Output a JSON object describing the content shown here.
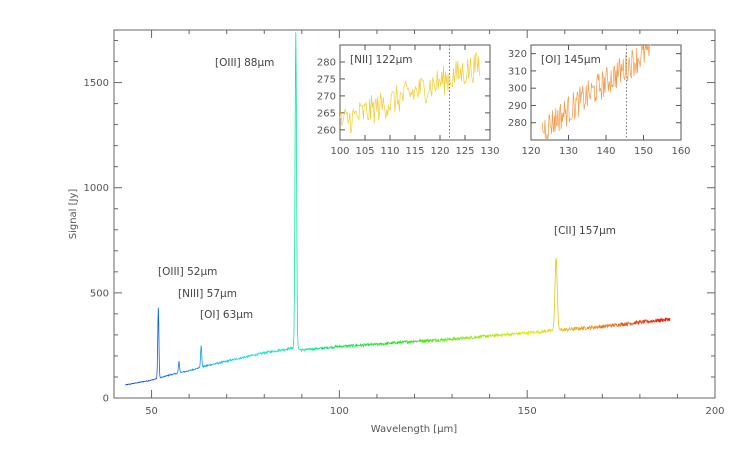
{
  "chart_data": {
    "type": "line",
    "xlabel": "Wavelength [μm]",
    "ylabel": "Signal [Jy]",
    "xlim": [
      40,
      200
    ],
    "ylim": [
      0,
      1750
    ],
    "xticks": [
      {
        "value": 50,
        "label": "50"
      },
      {
        "value": 100,
        "label": "100"
      },
      {
        "value": 150,
        "label": "150"
      },
      {
        "value": 200,
        "label": "200"
      }
    ],
    "yticks": [
      {
        "value": 0,
        "label": "0"
      },
      {
        "value": 500,
        "label": "500"
      },
      {
        "value": 1000,
        "label": "1000"
      },
      {
        "value": 1500,
        "label": "1500"
      }
    ],
    "grid": false,
    "continuum": [
      [
        43,
        62
      ],
      [
        50,
        85
      ],
      [
        52,
        95
      ],
      [
        55,
        110
      ],
      [
        60,
        130
      ],
      [
        65,
        155
      ],
      [
        70,
        175
      ],
      [
        75,
        195
      ],
      [
        80,
        215
      ],
      [
        85,
        230
      ],
      [
        88,
        240
      ],
      [
        90,
        228
      ],
      [
        95,
        236
      ],
      [
        100,
        245
      ],
      [
        110,
        255
      ],
      [
        120,
        270
      ],
      [
        130,
        280
      ],
      [
        140,
        295
      ],
      [
        150,
        310
      ],
      [
        160,
        325
      ],
      [
        170,
        340
      ],
      [
        180,
        360
      ],
      [
        188,
        375
      ]
    ],
    "lines": [
      {
        "name": "[OIII] 52μm",
        "center": 51.8,
        "peak": 430,
        "width": 0.15
      },
      {
        "name": "[NIII] 57μm",
        "center": 57.3,
        "peak": 175,
        "width": 0.15
      },
      {
        "name": "[OI] 63μm",
        "center": 63.2,
        "peak": 250,
        "width": 0.15
      },
      {
        "name": "[OIII] 88μm",
        "center": 88.4,
        "peak": 1740,
        "width": 0.2
      },
      {
        "name": "[CII] 157μm",
        "center": 157.7,
        "peak": 665,
        "width": 0.3
      }
    ],
    "insets": [
      {
        "name": "[NII] 122μm",
        "type": "line",
        "color": "#f2cc30",
        "xlim": [
          100,
          130
        ],
        "ylim": [
          257,
          285
        ],
        "xticks": [
          100,
          105,
          110,
          115,
          120,
          125,
          130
        ],
        "yticks": [
          260,
          265,
          270,
          275,
          280
        ],
        "marker_x": 121.9,
        "data_range": [
          100,
          128
        ],
        "trend_start": 262,
        "trend_end": 279
      },
      {
        "name": "[OI] 145μm",
        "type": "line",
        "color": "#f29a4a",
        "xlim": [
          120,
          160
        ],
        "ylim": [
          270,
          325
        ],
        "xticks": [
          120,
          130,
          140,
          150,
          160
        ],
        "yticks": [
          280,
          290,
          300,
          310,
          320
        ],
        "marker_x": 145.5,
        "data_range": [
          123,
          152
        ],
        "trend_start": 276,
        "trend_end": 323
      }
    ]
  }
}
